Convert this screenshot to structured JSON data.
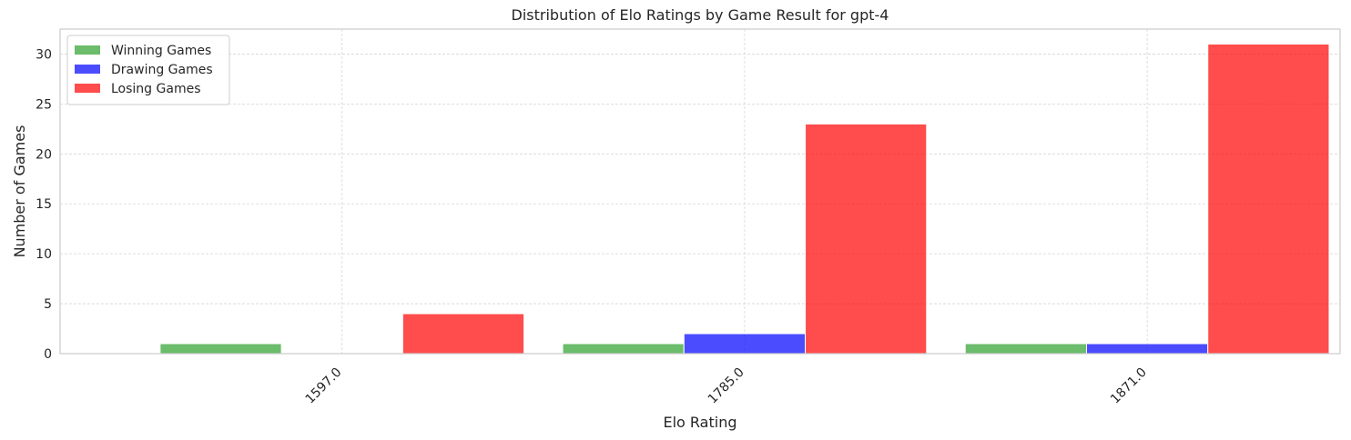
{
  "chart_data": {
    "type": "bar",
    "title": "Distribution of Elo Ratings by Game Result for gpt-4",
    "xlabel": "Elo Rating",
    "ylabel": "Number of Games",
    "categories": [
      "1597.0",
      "1785.0",
      "1871.0"
    ],
    "series": [
      {
        "name": "Winning Games",
        "color": "#2ca02c",
        "values": [
          1,
          1,
          1
        ]
      },
      {
        "name": "Drawing Games",
        "color": "#0000ff",
        "values": [
          0,
          2,
          1
        ]
      },
      {
        "name": "Losing Games",
        "color": "#ff0000",
        "values": [
          4,
          23,
          31
        ]
      }
    ],
    "ylim": [
      0,
      32.5
    ],
    "yticks": [
      0,
      5,
      10,
      15,
      20,
      25,
      30
    ],
    "grid": true,
    "legend_position": "top-left",
    "bar_opacity": 0.7
  }
}
